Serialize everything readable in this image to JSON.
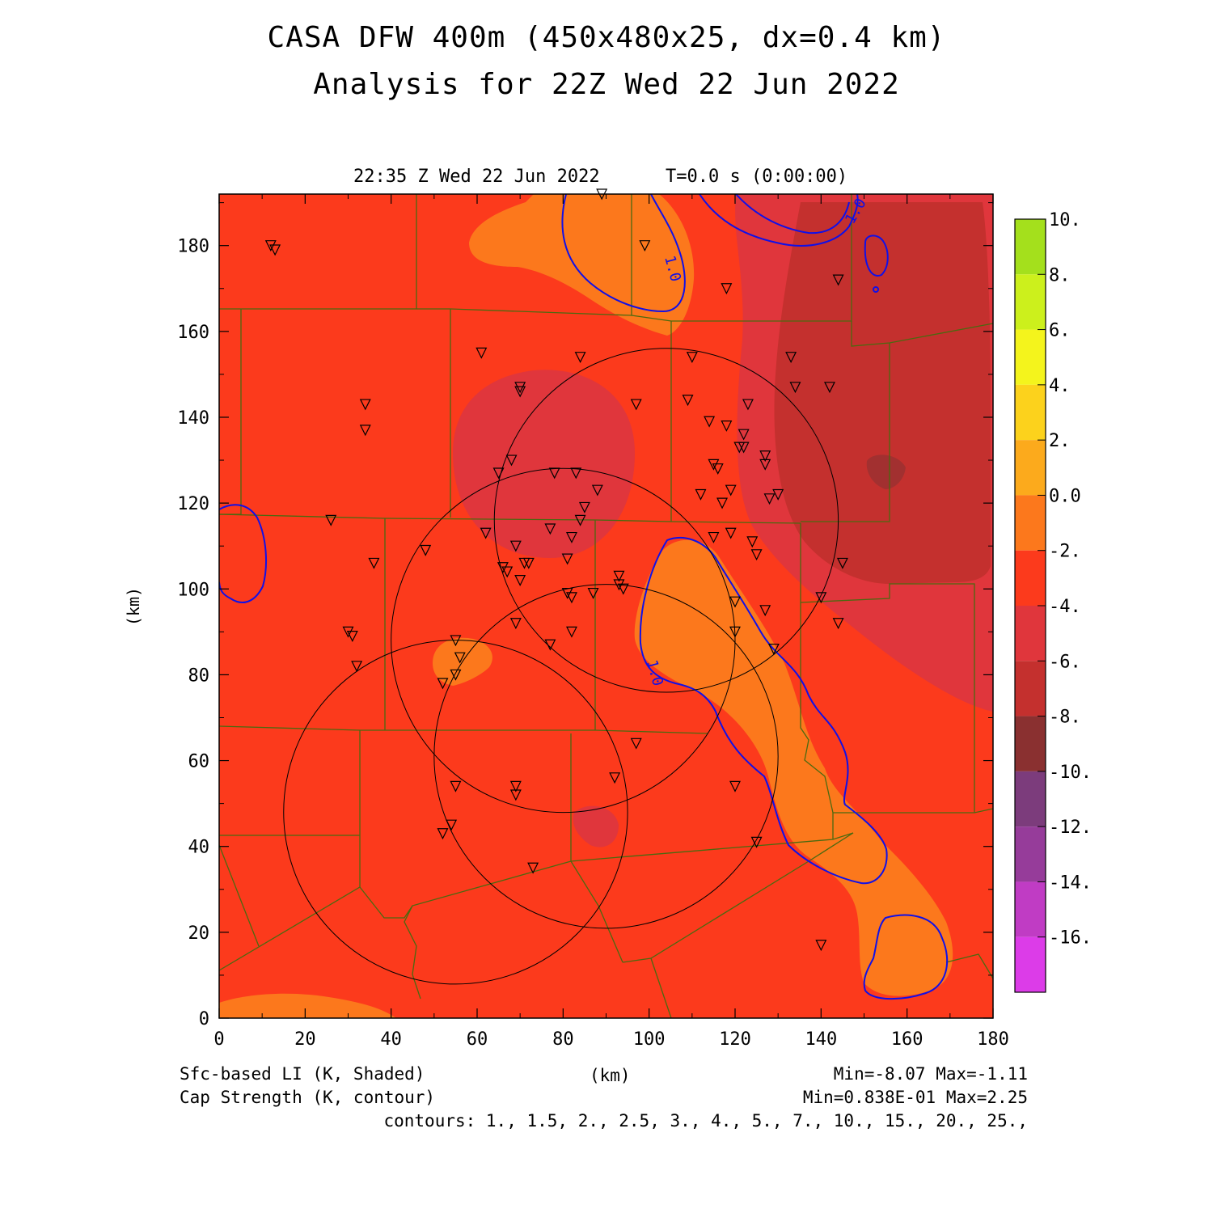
{
  "header": {
    "title_line1": "CASA DFW 400m (450x480x25, dx=0.4 km)",
    "title_line2": "Analysis for 22Z Wed 22 Jun 2022",
    "valid_time": "22:35 Z Wed 22 Jun 2022",
    "model_time": "T=0.0 s (0:00:00)"
  },
  "axes": {
    "x_unit": "(km)",
    "y_unit": "(km)",
    "xlim": [
      0,
      180
    ],
    "ylim": [
      0,
      192
    ],
    "x_ticks": [
      "0",
      "20",
      "40",
      "60",
      "80",
      "100",
      "120",
      "140",
      "160",
      "180"
    ],
    "y_ticks": [
      "0",
      "20",
      "40",
      "60",
      "80",
      "100",
      "120",
      "140",
      "160",
      "180"
    ]
  },
  "colorbar": {
    "labels": [
      "10.",
      "8.",
      "6.",
      "4.",
      "2.",
      "0.0",
      "-2.",
      "-4.",
      "-6.",
      "-8.",
      "-10.",
      "-12.",
      "-14.",
      "-16."
    ],
    "colors": [
      "#a4e01c",
      "#ccf01c",
      "#f4f41c",
      "#fcd21c",
      "#fcaa1c",
      "#fc781c",
      "#fc3a1c",
      "#e0363c",
      "#c4302e",
      "#8a3030",
      "#7c3c7c",
      "#963c9a",
      "#c03cc4",
      "#dc3ce8"
    ]
  },
  "footer": {
    "shaded_label": "Sfc-based LI (K, Shaded)",
    "contour_label": "Cap Strength (K, contour)",
    "x_unit": "(km)",
    "shaded_range": "Min=-8.07 Max=-1.11",
    "contour_range": "Min=0.838E-01 Max=2.25",
    "contours": "contours: 1., 1.5, 2., 2.5, 3., 4., 5., 7., 10., 15., 20., 25.,"
  },
  "map": {
    "contour_value_label": "1.0",
    "colors": {
      "base": "#fc3a1c",
      "orange": "#fc781c",
      "light_orange": "#fca01c",
      "red_mid": "#e0363c",
      "red_dark": "#c4302e",
      "deep": "#a23030",
      "contour": "#1010e8",
      "boundary": "#4a6a10",
      "radar_ring": "#000000"
    },
    "radars": [
      {
        "center": [
          104,
          116
        ],
        "radius": 40
      },
      {
        "center": [
          80,
          88
        ],
        "radius": 40
      },
      {
        "center": [
          90,
          61
        ],
        "radius": 40
      },
      {
        "center": [
          55,
          48
        ],
        "radius": 40
      }
    ],
    "stations": [
      [
        12,
        180
      ],
      [
        13,
        179
      ],
      [
        89,
        192
      ],
      [
        99,
        180
      ],
      [
        118,
        170
      ],
      [
        144,
        172
      ],
      [
        61,
        155
      ],
      [
        84,
        154
      ],
      [
        110,
        154
      ],
      [
        133,
        154
      ],
      [
        34,
        143
      ],
      [
        34,
        137
      ],
      [
        70,
        147
      ],
      [
        70,
        146
      ],
      [
        97,
        143
      ],
      [
        109,
        144
      ],
      [
        123,
        143
      ],
      [
        134,
        147
      ],
      [
        142,
        147
      ],
      [
        114,
        139
      ],
      [
        118,
        138
      ],
      [
        122,
        136
      ],
      [
        121,
        133
      ],
      [
        122,
        133
      ],
      [
        127,
        131
      ],
      [
        127,
        129
      ],
      [
        65,
        127
      ],
      [
        68,
        130
      ],
      [
        78,
        127
      ],
      [
        83,
        127
      ],
      [
        115,
        129
      ],
      [
        116,
        128
      ],
      [
        88,
        123
      ],
      [
        112,
        122
      ],
      [
        119,
        123
      ],
      [
        128,
        121
      ],
      [
        130,
        122
      ],
      [
        117,
        120
      ],
      [
        26,
        116
      ],
      [
        85,
        119
      ],
      [
        84,
        116
      ],
      [
        62,
        113
      ],
      [
        69,
        110
      ],
      [
        77,
        114
      ],
      [
        82,
        112
      ],
      [
        115,
        112
      ],
      [
        119,
        113
      ],
      [
        124,
        111
      ],
      [
        125,
        108
      ],
      [
        36,
        106
      ],
      [
        48,
        109
      ],
      [
        67,
        104
      ],
      [
        66,
        105
      ],
      [
        70,
        102
      ],
      [
        71,
        106
      ],
      [
        72,
        106
      ],
      [
        81,
        107
      ],
      [
        87,
        99
      ],
      [
        93,
        103
      ],
      [
        93,
        101
      ],
      [
        94,
        100
      ],
      [
        81,
        99
      ],
      [
        82,
        98
      ],
      [
        120,
        97
      ],
      [
        140,
        98
      ],
      [
        145,
        106
      ],
      [
        30,
        90
      ],
      [
        31,
        89
      ],
      [
        55,
        88
      ],
      [
        69,
        92
      ],
      [
        77,
        87
      ],
      [
        82,
        90
      ],
      [
        120,
        90
      ],
      [
        127,
        95
      ],
      [
        144,
        92
      ],
      [
        32,
        82
      ],
      [
        56,
        84
      ],
      [
        55,
        80
      ],
      [
        52,
        78
      ],
      [
        129,
        86
      ],
      [
        97,
        64
      ],
      [
        92,
        56
      ],
      [
        55,
        54
      ],
      [
        69,
        54
      ],
      [
        69,
        52
      ],
      [
        120,
        54
      ],
      [
        52,
        43
      ],
      [
        54,
        45
      ],
      [
        125,
        41
      ],
      [
        73,
        35
      ],
      [
        140,
        17
      ]
    ]
  }
}
